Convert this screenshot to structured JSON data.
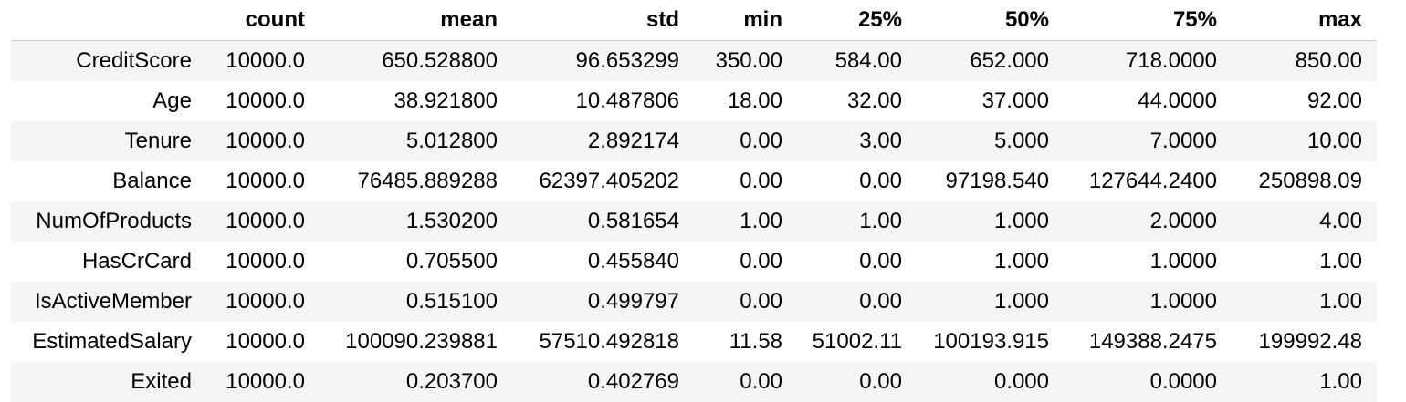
{
  "table": {
    "columns": [
      "",
      "count",
      "mean",
      "std",
      "min",
      "25%",
      "50%",
      "75%",
      "max"
    ],
    "rows": [
      {
        "label": "CreditScore",
        "values": [
          "10000.0",
          "650.528800",
          "96.653299",
          "350.00",
          "584.00",
          "652.000",
          "718.0000",
          "850.00"
        ]
      },
      {
        "label": "Age",
        "values": [
          "10000.0",
          "38.921800",
          "10.487806",
          "18.00",
          "32.00",
          "37.000",
          "44.0000",
          "92.00"
        ]
      },
      {
        "label": "Tenure",
        "values": [
          "10000.0",
          "5.012800",
          "2.892174",
          "0.00",
          "3.00",
          "5.000",
          "7.0000",
          "10.00"
        ]
      },
      {
        "label": "Balance",
        "values": [
          "10000.0",
          "76485.889288",
          "62397.405202",
          "0.00",
          "0.00",
          "97198.540",
          "127644.2400",
          "250898.09"
        ]
      },
      {
        "label": "NumOfProducts",
        "values": [
          "10000.0",
          "1.530200",
          "0.581654",
          "1.00",
          "1.00",
          "1.000",
          "2.0000",
          "4.00"
        ]
      },
      {
        "label": "HasCrCard",
        "values": [
          "10000.0",
          "0.705500",
          "0.455840",
          "0.00",
          "0.00",
          "1.000",
          "1.0000",
          "1.00"
        ]
      },
      {
        "label": "IsActiveMember",
        "values": [
          "10000.0",
          "0.515100",
          "0.499797",
          "0.00",
          "0.00",
          "1.000",
          "1.0000",
          "1.00"
        ]
      },
      {
        "label": "EstimatedSalary",
        "values": [
          "10000.0",
          "100090.239881",
          "57510.492818",
          "11.58",
          "51002.11",
          "100193.915",
          "149388.2475",
          "199992.48"
        ]
      },
      {
        "label": "Exited",
        "values": [
          "10000.0",
          "0.203700",
          "0.402769",
          "0.00",
          "0.00",
          "0.000",
          "0.0000",
          "1.00"
        ]
      }
    ]
  }
}
